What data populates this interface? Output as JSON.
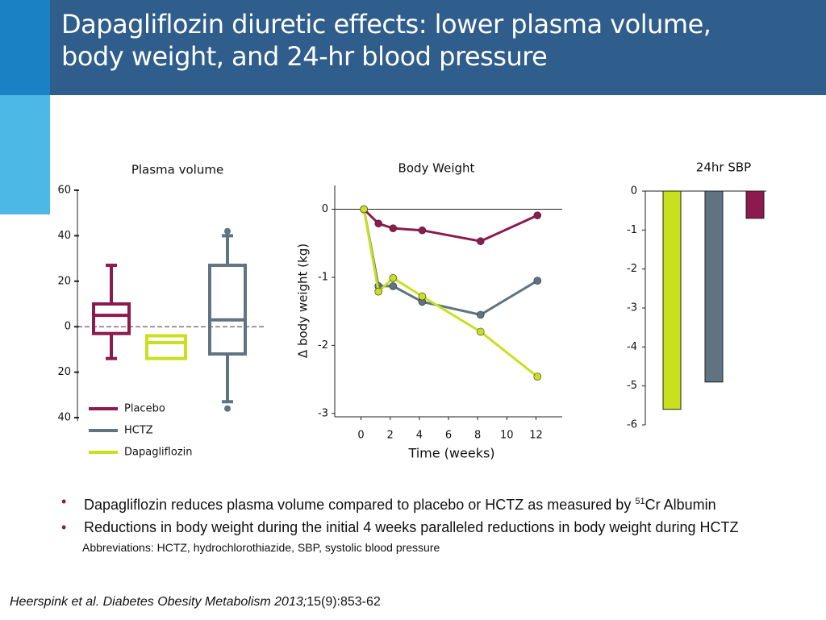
{
  "title": [
    "Dapagliflozin diuretic effects: lower plasma volume,",
    "body weight, and 24-hr blood pressure"
  ],
  "bullets": [
    {
      "text": "Dapagliflozin reduces plasma volume compared to placebo or HCTZ as measured by ",
      "sup": "51",
      "after": "Cr Albumin"
    },
    {
      "text": "Reductions in body weight during the initial 4 weeks paralleled reductions in body weight during HCTZ"
    }
  ],
  "abbreviations": "Abbreviations: HCTZ, hydrochlorothiazide, SBP, systolic blood pressure",
  "citation": {
    "italic": "Heerspink et al. Diabetes Obesity Metabolism 2013;",
    "plain": "15(9):853-62"
  },
  "chart_data": [
    {
      "type": "box",
      "title": "Plasma volume",
      "ylim": [
        -40,
        60
      ],
      "yticks": [
        60,
        40,
        20,
        0,
        {
          "value": -20,
          "label": "20"
        },
        {
          "value": -40,
          "label": "40"
        }
      ],
      "series": [
        {
          "name": "Placebo",
          "color": "#8b1a4e",
          "whisker_low": -14,
          "q1": -3,
          "median": 5,
          "q3": 10,
          "whisker_high": 27
        },
        {
          "name": "Dapagliflozin",
          "color": "#c8e01e",
          "q1": -14,
          "median": -7,
          "q3": -4
        },
        {
          "name": "HCTZ",
          "color": "#5f7382",
          "whisker_low": -33,
          "q1": -12,
          "median": 3,
          "q3": 27,
          "whisker_high": 40,
          "outliers": [
            42,
            -36
          ]
        }
      ]
    },
    {
      "type": "line",
      "title": "Body Weight",
      "xlabel": "Time (weeks)",
      "ylabel": "Δ  body weight  (kg)",
      "x": [
        0.2,
        1.2,
        2.2,
        4.2,
        8.2,
        12.1
      ],
      "xlim": [
        -1.8,
        13.8
      ],
      "xticks": [
        0,
        2,
        4,
        6,
        8,
        10,
        12
      ],
      "ylim": [
        -3.05,
        0.35
      ],
      "yticks": [
        0,
        -1,
        -2,
        -3
      ],
      "series": [
        {
          "color": "#8b1a4e",
          "values": [
            0,
            -0.21,
            -0.28,
            -0.31,
            -0.47,
            -0.09
          ]
        },
        {
          "color": "#5f7382",
          "values": [
            0,
            -1.13,
            -1.13,
            -1.36,
            -1.55,
            -1.05
          ]
        },
        {
          "color": "#c8e01e",
          "values": [
            0,
            -1.21,
            -1.01,
            -1.28,
            -1.8,
            -2.46
          ]
        }
      ]
    },
    {
      "type": "bar",
      "title": "24hr SBP",
      "ylim": [
        -6,
        0
      ],
      "yticks": [
        0,
        -1,
        -2,
        -3,
        -4,
        -5,
        -6
      ],
      "values": [
        -5.6,
        -4.9,
        -0.7
      ],
      "colors": [
        "#c8e01e",
        "#5f7382",
        "#8b1a4e"
      ]
    }
  ]
}
